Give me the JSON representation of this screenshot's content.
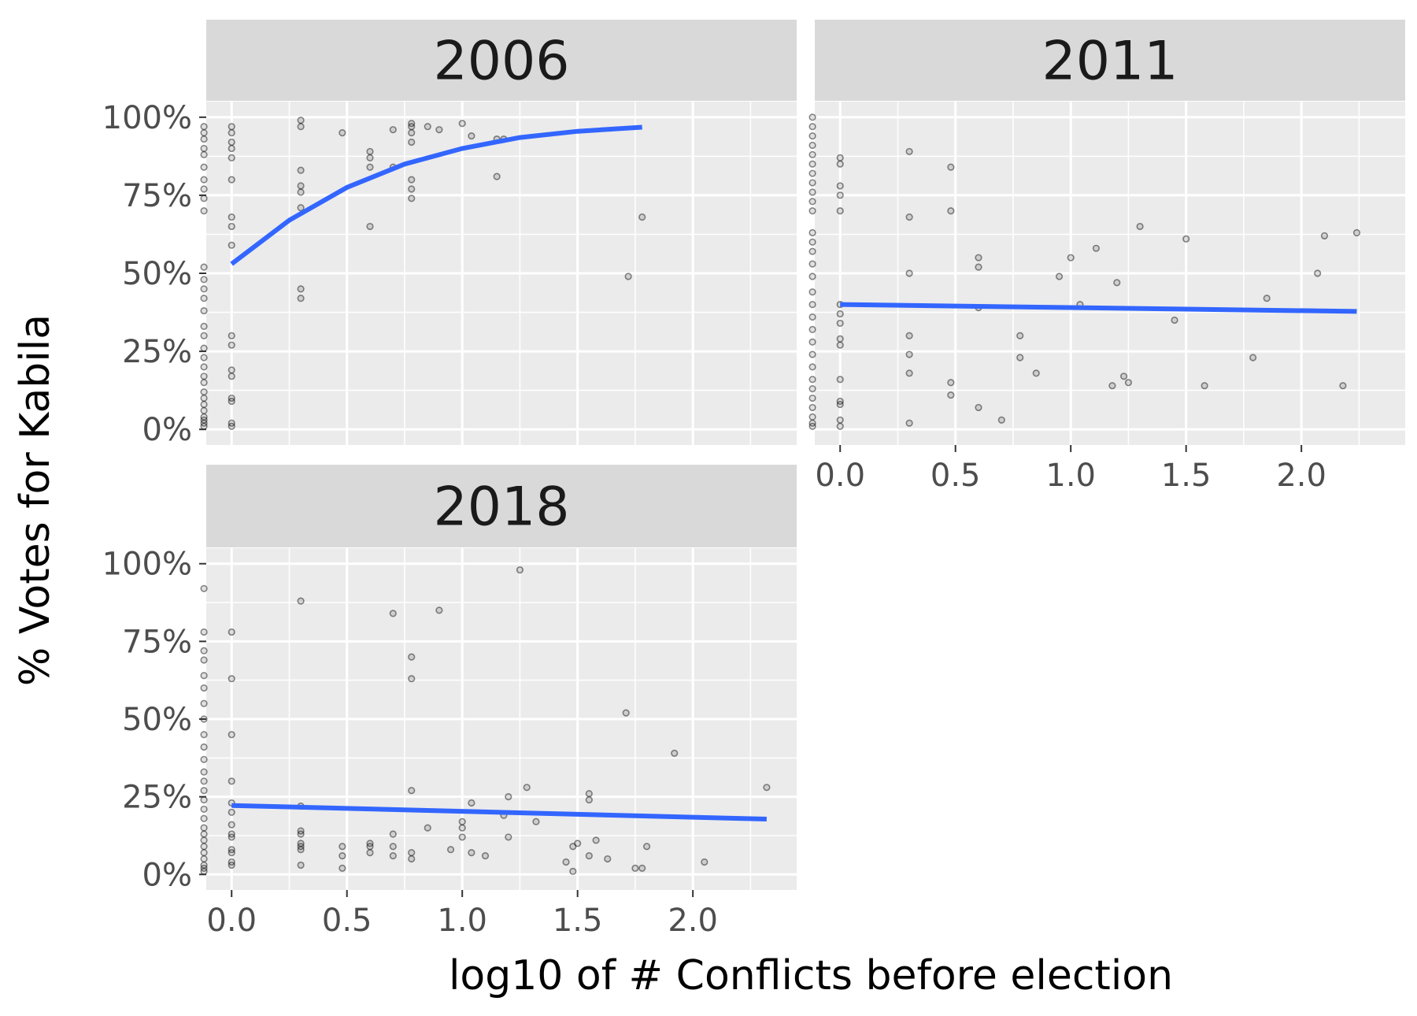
{
  "chart_data": {
    "type": "scatter",
    "facet_variable": "year",
    "xlabel": "log10 of # Conflicts before election",
    "ylabel": "% Votes for Kabila",
    "xlim": [
      -0.11,
      2.45
    ],
    "ylim": [
      -0.05,
      1.05
    ],
    "x_ticks": [
      0.0,
      0.5,
      1.0,
      1.5,
      2.0
    ],
    "x_tick_labels": [
      "0.0",
      "0.5",
      "1.0",
      "1.5",
      "2.0"
    ],
    "y_ticks": [
      0,
      0.25,
      0.5,
      0.75,
      1.0
    ],
    "y_tick_labels": [
      "0%",
      "25%",
      "50%",
      "75%",
      "100%"
    ],
    "grid": true,
    "colors": {
      "panel_background": "#ebebeb",
      "strip_background": "#d9d9d9",
      "grid": "#ffffff",
      "points": "#000000",
      "smooth_line": "#3366ff"
    },
    "panels": [
      {
        "label": "2006",
        "points": [
          [
            -0.12,
            0.97
          ],
          [
            -0.12,
            0.95
          ],
          [
            -0.12,
            0.93
          ],
          [
            -0.12,
            0.9
          ],
          [
            -0.12,
            0.88
          ],
          [
            -0.12,
            0.84
          ],
          [
            -0.12,
            0.8
          ],
          [
            -0.12,
            0.77
          ],
          [
            -0.12,
            0.74
          ],
          [
            -0.12,
            0.7
          ],
          [
            -0.12,
            0.52
          ],
          [
            -0.12,
            0.48
          ],
          [
            -0.12,
            0.45
          ],
          [
            -0.12,
            0.42
          ],
          [
            -0.12,
            0.38
          ],
          [
            -0.12,
            0.33
          ],
          [
            -0.12,
            0.3
          ],
          [
            -0.12,
            0.26
          ],
          [
            -0.12,
            0.23
          ],
          [
            -0.12,
            0.2
          ],
          [
            -0.12,
            0.17
          ],
          [
            -0.12,
            0.15
          ],
          [
            -0.12,
            0.12
          ],
          [
            -0.12,
            0.1
          ],
          [
            -0.12,
            0.08
          ],
          [
            -0.12,
            0.06
          ],
          [
            -0.12,
            0.04
          ],
          [
            -0.12,
            0.03
          ],
          [
            -0.12,
            0.02
          ],
          [
            -0.12,
            0.01
          ],
          [
            0,
            0.97
          ],
          [
            0,
            0.95
          ],
          [
            0,
            0.92
          ],
          [
            0,
            0.9
          ],
          [
            0,
            0.87
          ],
          [
            0,
            0.8
          ],
          [
            0,
            0.68
          ],
          [
            0,
            0.65
          ],
          [
            0,
            0.59
          ],
          [
            0,
            0.3
          ],
          [
            0,
            0.27
          ],
          [
            0,
            0.19
          ],
          [
            0,
            0.17
          ],
          [
            0,
            0.1
          ],
          [
            0,
            0.09
          ],
          [
            0,
            0.02
          ],
          [
            0,
            0.01
          ],
          [
            0.3,
            0.99
          ],
          [
            0.3,
            0.97
          ],
          [
            0.3,
            0.83
          ],
          [
            0.3,
            0.78
          ],
          [
            0.3,
            0.76
          ],
          [
            0.3,
            0.71
          ],
          [
            0.3,
            0.45
          ],
          [
            0.3,
            0.42
          ],
          [
            0.48,
            0.95
          ],
          [
            0.6,
            0.89
          ],
          [
            0.6,
            0.87
          ],
          [
            0.6,
            0.84
          ],
          [
            0.6,
            0.65
          ],
          [
            0.7,
            0.96
          ],
          [
            0.7,
            0.84
          ],
          [
            0.78,
            0.98
          ],
          [
            0.78,
            0.97
          ],
          [
            0.78,
            0.95
          ],
          [
            0.78,
            0.92
          ],
          [
            0.78,
            0.8
          ],
          [
            0.78,
            0.77
          ],
          [
            0.78,
            0.74
          ],
          [
            0.85,
            0.97
          ],
          [
            0.9,
            0.96
          ],
          [
            1.0,
            0.98
          ],
          [
            1.04,
            0.94
          ],
          [
            1.15,
            0.93
          ],
          [
            1.18,
            0.93
          ],
          [
            1.15,
            0.81
          ],
          [
            1.78,
            0.68
          ],
          [
            1.72,
            0.49
          ]
        ],
        "smooth": [
          [
            0,
            0.53
          ],
          [
            0.25,
            0.67
          ],
          [
            0.5,
            0.775
          ],
          [
            0.75,
            0.85
          ],
          [
            1.0,
            0.9
          ],
          [
            1.25,
            0.935
          ],
          [
            1.5,
            0.955
          ],
          [
            1.78,
            0.968
          ]
        ]
      },
      {
        "label": "2011",
        "points": [
          [
            -0.12,
            1.0
          ],
          [
            -0.12,
            0.97
          ],
          [
            -0.12,
            0.94
          ],
          [
            -0.12,
            0.91
          ],
          [
            -0.12,
            0.88
          ],
          [
            -0.12,
            0.85
          ],
          [
            -0.12,
            0.82
          ],
          [
            -0.12,
            0.79
          ],
          [
            -0.12,
            0.76
          ],
          [
            -0.12,
            0.73
          ],
          [
            -0.12,
            0.7
          ],
          [
            -0.12,
            0.63
          ],
          [
            -0.12,
            0.6
          ],
          [
            -0.12,
            0.57
          ],
          [
            -0.12,
            0.53
          ],
          [
            -0.12,
            0.49
          ],
          [
            -0.12,
            0.44
          ],
          [
            -0.12,
            0.4
          ],
          [
            -0.12,
            0.36
          ],
          [
            -0.12,
            0.32
          ],
          [
            -0.12,
            0.28
          ],
          [
            -0.12,
            0.24
          ],
          [
            -0.12,
            0.2
          ],
          [
            -0.12,
            0.16
          ],
          [
            -0.12,
            0.13
          ],
          [
            -0.12,
            0.1
          ],
          [
            -0.12,
            0.07
          ],
          [
            -0.12,
            0.04
          ],
          [
            -0.12,
            0.02
          ],
          [
            -0.12,
            0.01
          ],
          [
            0,
            0.87
          ],
          [
            0,
            0.85
          ],
          [
            0,
            0.78
          ],
          [
            0,
            0.75
          ],
          [
            0,
            0.7
          ],
          [
            0,
            0.4
          ],
          [
            0,
            0.37
          ],
          [
            0,
            0.34
          ],
          [
            0,
            0.29
          ],
          [
            0,
            0.27
          ],
          [
            0,
            0.16
          ],
          [
            0,
            0.09
          ],
          [
            0,
            0.08
          ],
          [
            0,
            0.03
          ],
          [
            0,
            0.01
          ],
          [
            0.3,
            0.89
          ],
          [
            0.3,
            0.68
          ],
          [
            0.3,
            0.5
          ],
          [
            0.3,
            0.3
          ],
          [
            0.3,
            0.24
          ],
          [
            0.3,
            0.18
          ],
          [
            0.3,
            0.02
          ],
          [
            0.48,
            0.84
          ],
          [
            0.48,
            0.7
          ],
          [
            0.48,
            0.15
          ],
          [
            0.48,
            0.11
          ],
          [
            0.6,
            0.55
          ],
          [
            0.6,
            0.52
          ],
          [
            0.6,
            0.39
          ],
          [
            0.6,
            0.07
          ],
          [
            0.7,
            0.03
          ],
          [
            0.78,
            0.3
          ],
          [
            0.78,
            0.23
          ],
          [
            0.85,
            0.18
          ],
          [
            0.95,
            0.49
          ],
          [
            1.0,
            0.55
          ],
          [
            1.04,
            0.4
          ],
          [
            1.11,
            0.58
          ],
          [
            1.18,
            0.14
          ],
          [
            1.2,
            0.47
          ],
          [
            1.23,
            0.17
          ],
          [
            1.25,
            0.15
          ],
          [
            1.3,
            0.65
          ],
          [
            1.45,
            0.35
          ],
          [
            1.5,
            0.61
          ],
          [
            1.58,
            0.14
          ],
          [
            1.79,
            0.23
          ],
          [
            1.85,
            0.42
          ],
          [
            2.07,
            0.5
          ],
          [
            2.1,
            0.62
          ],
          [
            2.18,
            0.14
          ],
          [
            2.24,
            0.63
          ]
        ],
        "smooth": [
          [
            0,
            0.4
          ],
          [
            2.24,
            0.378
          ]
        ]
      },
      {
        "label": "2018",
        "points": [
          [
            -0.12,
            0.92
          ],
          [
            -0.12,
            0.78
          ],
          [
            -0.12,
            0.72
          ],
          [
            -0.12,
            0.69
          ],
          [
            -0.12,
            0.64
          ],
          [
            -0.12,
            0.6
          ],
          [
            -0.12,
            0.55
          ],
          [
            -0.12,
            0.5
          ],
          [
            -0.12,
            0.45
          ],
          [
            -0.12,
            0.41
          ],
          [
            -0.12,
            0.37
          ],
          [
            -0.12,
            0.33
          ],
          [
            -0.12,
            0.3
          ],
          [
            -0.12,
            0.27
          ],
          [
            -0.12,
            0.24
          ],
          [
            -0.12,
            0.21
          ],
          [
            -0.12,
            0.18
          ],
          [
            -0.12,
            0.15
          ],
          [
            -0.12,
            0.13
          ],
          [
            -0.12,
            0.11
          ],
          [
            -0.12,
            0.09
          ],
          [
            -0.12,
            0.07
          ],
          [
            -0.12,
            0.05
          ],
          [
            -0.12,
            0.03
          ],
          [
            -0.12,
            0.02
          ],
          [
            -0.12,
            0.01
          ],
          [
            0,
            0.78
          ],
          [
            0,
            0.63
          ],
          [
            0,
            0.45
          ],
          [
            0,
            0.3
          ],
          [
            0,
            0.23
          ],
          [
            0,
            0.2
          ],
          [
            0,
            0.16
          ],
          [
            0,
            0.13
          ],
          [
            0,
            0.12
          ],
          [
            0,
            0.08
          ],
          [
            0,
            0.07
          ],
          [
            0,
            0.04
          ],
          [
            0,
            0.03
          ],
          [
            0.3,
            0.88
          ],
          [
            0.3,
            0.22
          ],
          [
            0.3,
            0.14
          ],
          [
            0.3,
            0.13
          ],
          [
            0.3,
            0.1
          ],
          [
            0.3,
            0.09
          ],
          [
            0.3,
            0.08
          ],
          [
            0.3,
            0.03
          ],
          [
            0.48,
            0.09
          ],
          [
            0.48,
            0.06
          ],
          [
            0.48,
            0.02
          ],
          [
            0.6,
            0.1
          ],
          [
            0.6,
            0.09
          ],
          [
            0.6,
            0.07
          ],
          [
            0.7,
            0.84
          ],
          [
            0.7,
            0.13
          ],
          [
            0.7,
            0.09
          ],
          [
            0.7,
            0.06
          ],
          [
            0.78,
            0.7
          ],
          [
            0.78,
            0.63
          ],
          [
            0.78,
            0.27
          ],
          [
            0.78,
            0.07
          ],
          [
            0.78,
            0.05
          ],
          [
            0.85,
            0.15
          ],
          [
            0.9,
            0.85
          ],
          [
            0.95,
            0.08
          ],
          [
            1.0,
            0.17
          ],
          [
            1.0,
            0.15
          ],
          [
            1.0,
            0.12
          ],
          [
            1.04,
            0.23
          ],
          [
            1.04,
            0.07
          ],
          [
            1.1,
            0.06
          ],
          [
            1.18,
            0.19
          ],
          [
            1.2,
            0.25
          ],
          [
            1.2,
            0.12
          ],
          [
            1.25,
            0.98
          ],
          [
            1.28,
            0.28
          ],
          [
            1.32,
            0.17
          ],
          [
            1.45,
            0.04
          ],
          [
            1.48,
            0.09
          ],
          [
            1.5,
            0.1
          ],
          [
            1.48,
            0.01
          ],
          [
            1.55,
            0.26
          ],
          [
            1.55,
            0.24
          ],
          [
            1.55,
            0.06
          ],
          [
            1.58,
            0.11
          ],
          [
            1.63,
            0.05
          ],
          [
            1.71,
            0.52
          ],
          [
            1.75,
            0.02
          ],
          [
            1.78,
            0.02
          ],
          [
            1.8,
            0.09
          ],
          [
            1.92,
            0.39
          ],
          [
            2.05,
            0.04
          ],
          [
            2.32,
            0.28
          ]
        ],
        "smooth": [
          [
            0,
            0.222
          ],
          [
            2.32,
            0.178
          ]
        ]
      }
    ]
  }
}
